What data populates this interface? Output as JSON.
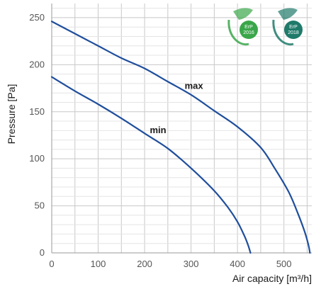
{
  "chart_data": {
    "type": "line",
    "xlabel": "Air capacity [m³/h]",
    "ylabel": "Pressure [Pa]",
    "xlim": [
      0,
      560
    ],
    "ylim": [
      0,
      265
    ],
    "x_ticks": [
      0,
      100,
      200,
      300,
      400,
      500
    ],
    "y_ticks": [
      0,
      50,
      100,
      150,
      200,
      250
    ],
    "grid": true,
    "series": [
      {
        "name": "max",
        "color": "#1f4e9c",
        "points": [
          [
            0,
            246
          ],
          [
            50,
            233
          ],
          [
            100,
            220
          ],
          [
            150,
            207
          ],
          [
            200,
            196
          ],
          [
            250,
            182
          ],
          [
            300,
            168
          ],
          [
            350,
            151
          ],
          [
            400,
            134
          ],
          [
            450,
            112
          ],
          [
            480,
            90
          ],
          [
            510,
            65
          ],
          [
            530,
            42
          ],
          [
            545,
            22
          ],
          [
            553,
            8
          ],
          [
            556,
            0
          ]
        ]
      },
      {
        "name": "min",
        "color": "#1f4e9c",
        "points": [
          [
            0,
            187
          ],
          [
            50,
            172
          ],
          [
            100,
            158
          ],
          [
            150,
            143
          ],
          [
            200,
            127
          ],
          [
            250,
            111
          ],
          [
            300,
            90
          ],
          [
            350,
            66
          ],
          [
            380,
            48
          ],
          [
            400,
            33
          ],
          [
            415,
            18
          ],
          [
            423,
            8
          ],
          [
            428,
            0
          ]
        ]
      }
    ],
    "annotations": [
      {
        "text": "max",
        "x": 300,
        "y": 178
      },
      {
        "text": "min",
        "x": 225,
        "y": 131
      }
    ]
  },
  "badges": [
    {
      "name": "erp-2016",
      "line1": "ErP",
      "line2": "2016",
      "color": "#3aa64a"
    },
    {
      "name": "erp-2018",
      "line1": "ErP",
      "line2": "2018",
      "color": "#1f7a6a"
    }
  ]
}
